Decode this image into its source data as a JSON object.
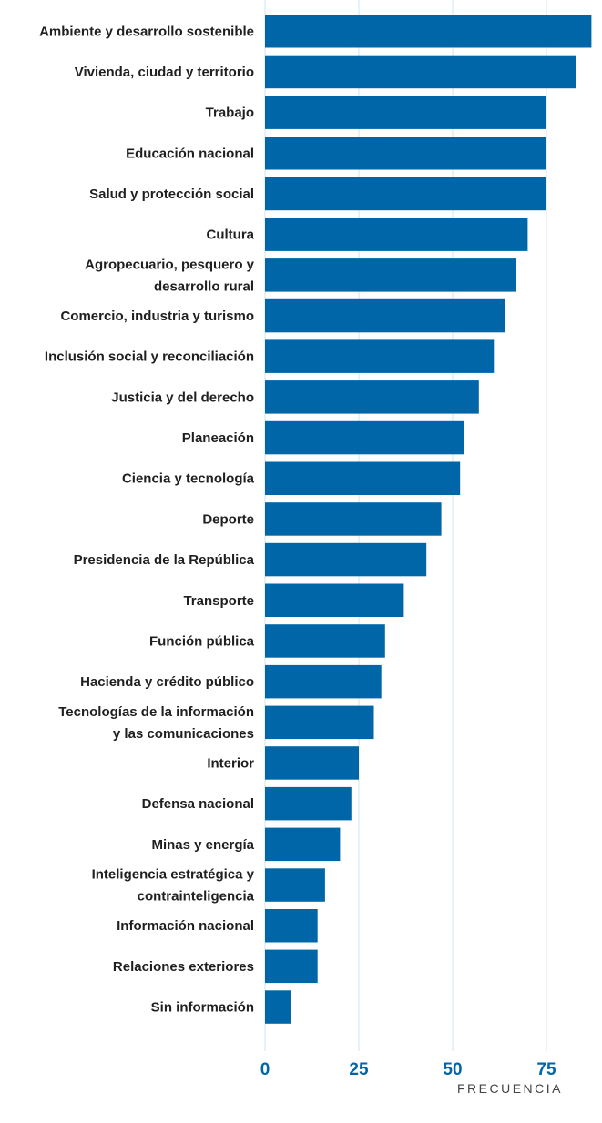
{
  "chart_data": {
    "type": "bar",
    "orientation": "horizontal",
    "categories": [
      "Ambiente y desarrollo sostenible",
      "Vivienda, ciudad y territorio",
      "Trabajo",
      "Educación nacional",
      "Salud y protección social",
      "Cultura",
      "Agropecuario, pesquero y desarrollo rural",
      "Comercio, industria y turismo",
      "Inclusión social y reconciliación",
      "Justicia y del derecho",
      "Planeación",
      "Ciencia y tecnología",
      "Deporte",
      "Presidencia de la República",
      "Transporte",
      "Función pública",
      "Hacienda y crédito público",
      "Tecnologías de la información y las comunicaciones",
      "Interior",
      "Defensa nacional",
      "Minas y energía",
      "Inteligencia estratégica y contrainteligencia",
      "Información nacional",
      "Relaciones exteriores",
      "Sin información"
    ],
    "label_lines": [
      [
        "Ambiente y desarrollo sostenible"
      ],
      [
        "Vivienda, ciudad y territorio"
      ],
      [
        "Trabajo"
      ],
      [
        "Educación nacional"
      ],
      [
        "Salud y protección social"
      ],
      [
        "Cultura"
      ],
      [
        "Agropecuario, pesquero y",
        "desarrollo rural"
      ],
      [
        "Comercio, industria y turismo"
      ],
      [
        "Inclusión social y reconciliación"
      ],
      [
        "Justicia y del derecho"
      ],
      [
        "Planeación"
      ],
      [
        "Ciencia y tecnología"
      ],
      [
        "Deporte"
      ],
      [
        "Presidencia de la República"
      ],
      [
        "Transporte"
      ],
      [
        "Función pública"
      ],
      [
        "Hacienda y crédito público"
      ],
      [
        "Tecnologías de la información",
        "y las comunicaciones"
      ],
      [
        "Interior"
      ],
      [
        "Defensa nacional"
      ],
      [
        "Minas y energía"
      ],
      [
        "Inteligencia estratégica y",
        "contrainteligencia"
      ],
      [
        "Información nacional"
      ],
      [
        "Relaciones exteriores"
      ],
      [
        "Sin información"
      ]
    ],
    "values": [
      87,
      83,
      75,
      75,
      75,
      70,
      67,
      64,
      61,
      57,
      53,
      52,
      47,
      43,
      37,
      32,
      31,
      29,
      25,
      23,
      20,
      16,
      14,
      14,
      7
    ],
    "xlabel": "FRECUENCIA",
    "ylabel": "",
    "xlim": [
      0,
      87
    ],
    "xticks": [
      0,
      25,
      50,
      75
    ],
    "xtick_labels": [
      "0",
      "25",
      "50",
      "75"
    ],
    "grid": true,
    "colors": {
      "bar": "#0066a8",
      "tick_label": "#0066a8",
      "gridline": "#cfe3ef"
    }
  }
}
